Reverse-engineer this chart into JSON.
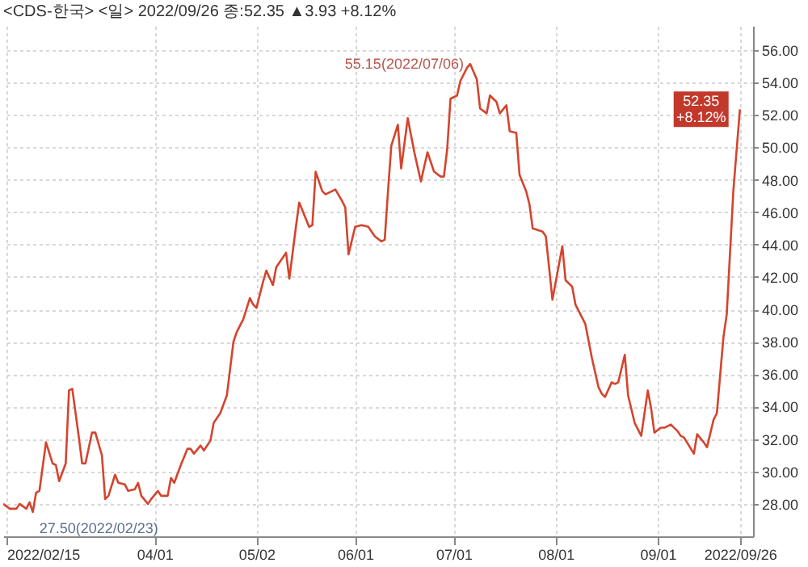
{
  "chart_data": {
    "type": "line",
    "title": "<CDS-한국> <일> 2022/09/26 종:52.35 ▲3.93 +8.12%",
    "x": [
      "2022-02-14",
      "2022-02-16",
      "2022-02-18",
      "2022-02-19",
      "2022-02-21",
      "2022-02-22",
      "2022-02-23",
      "2022-02-24",
      "2022-02-25",
      "2022-02-27",
      "2022-03-01",
      "2022-03-02",
      "2022-03-03",
      "2022-03-05",
      "2022-03-06",
      "2022-03-07",
      "2022-03-09",
      "2022-03-10",
      "2022-03-11",
      "2022-03-13",
      "2022-03-14",
      "2022-03-16",
      "2022-03-17",
      "2022-03-18",
      "2022-03-20",
      "2022-03-21",
      "2022-03-23",
      "2022-03-24",
      "2022-03-26",
      "2022-03-27",
      "2022-03-28",
      "2022-03-30",
      "2022-03-31",
      "2022-04-02",
      "2022-04-03",
      "2022-04-05",
      "2022-04-06",
      "2022-04-07",
      "2022-04-09",
      "2022-04-11",
      "2022-04-12",
      "2022-04-13",
      "2022-04-15",
      "2022-04-16",
      "2022-04-18",
      "2022-04-19",
      "2022-04-21",
      "2022-04-23",
      "2022-04-25",
      "2022-04-26",
      "2022-04-28",
      "2022-04-30",
      "2022-05-01",
      "2022-05-02",
      "2022-05-04",
      "2022-05-05",
      "2022-05-07",
      "2022-05-08",
      "2022-05-10",
      "2022-05-11",
      "2022-05-12",
      "2022-05-14",
      "2022-05-15",
      "2022-05-17",
      "2022-05-18",
      "2022-05-19",
      "2022-05-20",
      "2022-05-22",
      "2022-05-23",
      "2022-05-26",
      "2022-05-28",
      "2022-05-29",
      "2022-05-30",
      "2022-06-01",
      "2022-06-03",
      "2022-06-05",
      "2022-06-07",
      "2022-06-09",
      "2022-06-10",
      "2022-06-11",
      "2022-06-12",
      "2022-06-14",
      "2022-06-15",
      "2022-06-17",
      "2022-06-19",
      "2022-06-21",
      "2022-06-23",
      "2022-06-25",
      "2022-06-27",
      "2022-06-28",
      "2022-06-29",
      "2022-06-30",
      "2022-07-02",
      "2022-07-03",
      "2022-07-05",
      "2022-07-06",
      "2022-07-08",
      "2022-07-09",
      "2022-07-11",
      "2022-07-12",
      "2022-07-14",
      "2022-07-15",
      "2022-07-17",
      "2022-07-18",
      "2022-07-20",
      "2022-07-21",
      "2022-07-23",
      "2022-07-24",
      "2022-07-25",
      "2022-07-28",
      "2022-07-29",
      "2022-07-31",
      "2022-08-02",
      "2022-08-03",
      "2022-08-04",
      "2022-08-06",
      "2022-08-07",
      "2022-08-09",
      "2022-08-10",
      "2022-08-12",
      "2022-08-14",
      "2022-08-15",
      "2022-08-16",
      "2022-08-18",
      "2022-08-19",
      "2022-08-20",
      "2022-08-22",
      "2022-08-23",
      "2022-08-25",
      "2022-08-27",
      "2022-08-29",
      "2022-08-30",
      "2022-08-31",
      "2022-09-02",
      "2022-09-03",
      "2022-09-05",
      "2022-09-07",
      "2022-09-08",
      "2022-09-09",
      "2022-09-12",
      "2022-09-13",
      "2022-09-15",
      "2022-09-16",
      "2022-09-18",
      "2022-09-19",
      "2022-09-21",
      "2022-09-22",
      "2022-09-24",
      "2022-09-26"
    ],
    "series": [
      {
        "color": "#d4442e",
        "values": [
          28.0,
          27.7,
          27.7,
          28.0,
          27.7,
          28.1,
          27.5,
          28.7,
          28.8,
          31.8,
          30.5,
          30.4,
          29.4,
          30.5,
          35.0,
          35.1,
          32.1,
          30.5,
          30.5,
          32.4,
          32.4,
          31.0,
          28.3,
          28.5,
          29.8,
          29.3,
          29.2,
          28.8,
          28.9,
          29.3,
          28.5,
          28.0,
          28.3,
          28.8,
          28.5,
          28.5,
          29.6,
          29.3,
          30.4,
          31.4,
          31.4,
          31.1,
          31.6,
          31.3,
          31.9,
          33.0,
          33.6,
          34.7,
          38.0,
          38.6,
          39.4,
          40.7,
          40.3,
          40.1,
          41.7,
          42.4,
          41.5,
          42.6,
          43.2,
          43.5,
          41.9,
          45.1,
          46.6,
          45.6,
          45.1,
          45.2,
          48.5,
          47.3,
          47.1,
          47.4,
          46.7,
          46.3,
          43.4,
          45.1,
          45.2,
          45.1,
          44.5,
          44.2,
          44.3,
          47.3,
          50.1,
          51.4,
          48.7,
          51.8,
          49.7,
          47.9,
          49.7,
          48.5,
          48.2,
          48.2,
          49.9,
          53.0,
          53.2,
          54.1,
          54.9,
          55.15,
          54.2,
          52.4,
          52.1,
          53.2,
          52.8,
          52.1,
          52.6,
          51.0,
          50.9,
          48.3,
          47.3,
          46.5,
          45.0,
          44.8,
          44.5,
          40.6,
          42.8,
          43.9,
          41.8,
          41.4,
          40.3,
          39.5,
          39.1,
          37.0,
          35.2,
          34.8,
          34.6,
          35.5,
          35.4,
          35.5,
          37.2,
          34.7,
          33.0,
          32.2,
          35.0,
          33.9,
          32.4,
          32.7,
          32.7,
          32.9,
          32.5,
          32.2,
          32.1,
          31.1,
          32.3,
          31.8,
          31.5,
          33.2,
          33.6,
          38.3,
          39.7,
          47.3,
          52.35
        ]
      }
    ],
    "xlim": [
      "2022-02-14",
      "2022-09-30"
    ],
    "xticks": [
      {
        "value": "2022-02-15",
        "label": "2022/02/15"
      },
      {
        "value": "2022-04-01",
        "label": "04/01"
      },
      {
        "value": "2022-05-02",
        "label": "05/02"
      },
      {
        "value": "2022-06-01",
        "label": "06/01"
      },
      {
        "value": "2022-07-01",
        "label": "07/01"
      },
      {
        "value": "2022-08-01",
        "label": "08/01"
      },
      {
        "value": "2022-09-01",
        "label": "09/01"
      },
      {
        "value": "2022-09-26",
        "label": "2022/09/26"
      }
    ],
    "ylim": [
      26,
      57.5
    ],
    "yticks": [
      {
        "value": 28,
        "label": "28.00"
      },
      {
        "value": 30,
        "label": "30.00"
      },
      {
        "value": 32,
        "label": "32.00"
      },
      {
        "value": 34,
        "label": "34.00"
      },
      {
        "value": 36,
        "label": "36.00"
      },
      {
        "value": 38,
        "label": "38.00"
      },
      {
        "value": 40,
        "label": "40.00"
      },
      {
        "value": 42,
        "label": "42.00"
      },
      {
        "value": 44,
        "label": "44.00"
      },
      {
        "value": 46,
        "label": "46.00"
      },
      {
        "value": 48,
        "label": "48.00"
      },
      {
        "value": 50,
        "label": "50.00"
      },
      {
        "value": 52,
        "label": "52.00"
      },
      {
        "value": 54,
        "label": "54.00"
      },
      {
        "value": 56,
        "label": "56.00"
      }
    ],
    "grid": true,
    "annotations": [
      {
        "text": "55.15(2022/07/06)",
        "x": "2022-07-06",
        "y": 55.15
      },
      {
        "text": "27.50(2022/02/23)",
        "x": "2022-02-23",
        "y": 27.5
      },
      {
        "text": "52.35",
        "x": "2022-09-26",
        "y": 52.35
      },
      {
        "text": "+8.12%",
        "x": "2022-09-26",
        "y": 52.35
      }
    ]
  }
}
